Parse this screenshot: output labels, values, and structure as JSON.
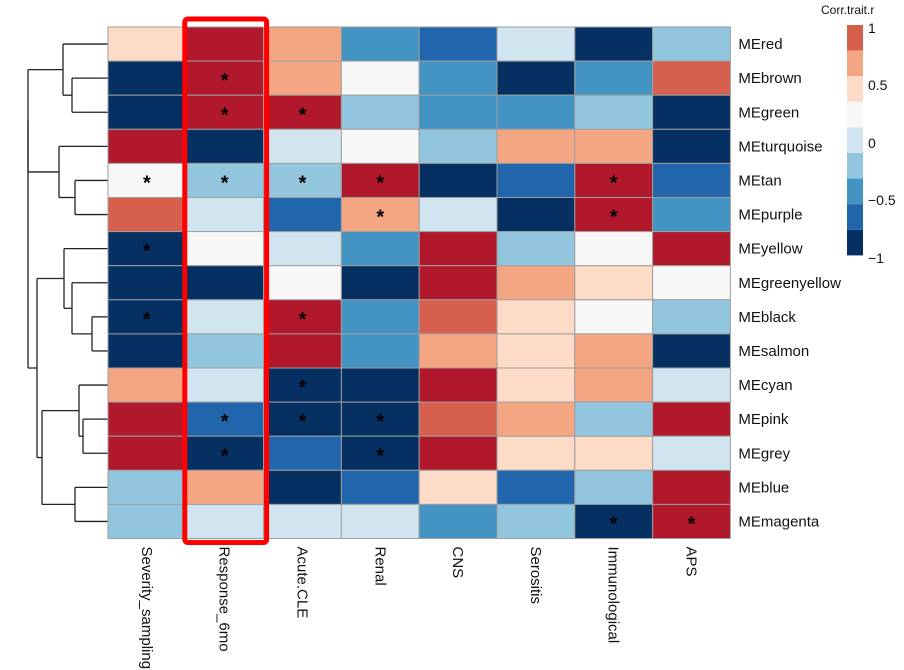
{
  "chart_data": {
    "type": "heatmap",
    "title": "",
    "xlabel": "",
    "ylabel": "",
    "columns": [
      "Severity_sampling",
      "Response_6mo",
      "Acute.CLE",
      "Renal",
      "CNS",
      "Serositis",
      "Immunological",
      "APS"
    ],
    "rows": [
      "MEred",
      "MEbrown",
      "MEgreen",
      "MEturquoise",
      "MEtan",
      "MEpurple",
      "MEyellow",
      "MEgreenyellow",
      "MEblack",
      "MEsalmon",
      "MEcyan",
      "MEpink",
      "MEgrey",
      "MEblue",
      "MEmagenta"
    ],
    "values": [
      [
        0.3,
        0.9,
        0.5,
        -0.5,
        -0.7,
        -0.1,
        -0.9,
        -0.3
      ],
      [
        -0.9,
        0.9,
        0.5,
        0.1,
        -0.5,
        -0.9,
        -0.5,
        0.7
      ],
      [
        -0.9,
        0.9,
        0.9,
        -0.3,
        -0.5,
        -0.5,
        -0.3,
        -0.9
      ],
      [
        0.9,
        -0.9,
        -0.1,
        0.1,
        -0.3,
        0.5,
        0.5,
        -0.9
      ],
      [
        0.1,
        -0.3,
        -0.3,
        0.9,
        -0.9,
        -0.7,
        0.9,
        -0.7
      ],
      [
        0.7,
        -0.1,
        -0.7,
        0.5,
        -0.1,
        -0.9,
        0.9,
        -0.5
      ],
      [
        -0.9,
        0.1,
        -0.1,
        -0.5,
        0.9,
        -0.3,
        0.1,
        0.9
      ],
      [
        -0.9,
        -0.9,
        0.1,
        -0.9,
        0.9,
        0.5,
        0.3,
        0.1
      ],
      [
        -0.9,
        -0.1,
        0.9,
        -0.5,
        0.7,
        0.3,
        0.1,
        -0.3
      ],
      [
        -0.9,
        -0.3,
        0.9,
        -0.5,
        0.5,
        0.3,
        0.5,
        -0.9
      ],
      [
        0.5,
        -0.1,
        -0.9,
        -0.9,
        0.9,
        0.3,
        0.5,
        -0.1
      ],
      [
        0.9,
        -0.7,
        -0.9,
        -0.9,
        0.7,
        0.5,
        -0.3,
        0.9
      ],
      [
        0.9,
        -0.9,
        -0.7,
        -0.9,
        0.9,
        0.3,
        0.3,
        -0.1
      ],
      [
        -0.3,
        0.5,
        -0.9,
        -0.7,
        0.3,
        -0.7,
        -0.3,
        0.9
      ],
      [
        -0.3,
        -0.1,
        -0.1,
        -0.1,
        -0.5,
        -0.3,
        -0.9,
        0.9
      ]
    ],
    "significant": [
      [
        false,
        false,
        false,
        false,
        false,
        false,
        false,
        false
      ],
      [
        false,
        true,
        false,
        false,
        false,
        false,
        false,
        false
      ],
      [
        false,
        true,
        true,
        false,
        false,
        false,
        false,
        false
      ],
      [
        false,
        false,
        false,
        false,
        false,
        false,
        false,
        false
      ],
      [
        true,
        true,
        true,
        true,
        false,
        false,
        true,
        false
      ],
      [
        false,
        false,
        false,
        true,
        false,
        false,
        true,
        false
      ],
      [
        true,
        false,
        false,
        false,
        false,
        false,
        false,
        false
      ],
      [
        false,
        false,
        false,
        false,
        false,
        false,
        false,
        false
      ],
      [
        true,
        false,
        true,
        false,
        false,
        false,
        false,
        false
      ],
      [
        false,
        false,
        false,
        false,
        false,
        false,
        false,
        false
      ],
      [
        false,
        false,
        true,
        false,
        false,
        false,
        false,
        false
      ],
      [
        false,
        true,
        true,
        true,
        false,
        false,
        false,
        false
      ],
      [
        false,
        true,
        false,
        true,
        false,
        false,
        false,
        false
      ],
      [
        false,
        false,
        false,
        false,
        false,
        false,
        false,
        false
      ],
      [
        false,
        false,
        false,
        false,
        false,
        false,
        true,
        true
      ]
    ],
    "significance_marker": "*",
    "highlighted_column": "Response_6mo",
    "highlight_color": "#ff0000",
    "color_scale": {
      "breaks": [
        -1,
        -0.8,
        -0.6,
        -0.4,
        -0.2,
        0,
        0.2,
        0.4,
        0.6,
        0.8,
        1
      ],
      "colors": [
        "#053061",
        "#2166ac",
        "#4393c3",
        "#92c5de",
        "#d1e5f0",
        "#f7f7f7",
        "#fddbc7",
        "#f4a582",
        "#d6604d",
        "#b2182b"
      ]
    },
    "legend": {
      "title": "Corr.trait.r",
      "position": "top-right",
      "ticks": [
        "1",
        "0.5",
        "0",
        "−0.5",
        "−1"
      ],
      "tick_values": [
        1,
        0.5,
        0,
        -0.5,
        -1
      ],
      "swatch_colors": [
        "#d6604d",
        "#f4a582",
        "#fddbc7",
        "#f7f7f7",
        "#d1e5f0",
        "#92c5de",
        "#4393c3",
        "#2166ac",
        "#053061"
      ]
    },
    "row_dendrogram": {
      "merges": [
        [
          "MEbrown",
          "MEgreen"
        ],
        [
          "MEred",
          "MEbrown+MEgreen"
        ],
        [
          "MEtan",
          "MEpurple"
        ],
        [
          "MEturquoise",
          "MEtan+MEpurple"
        ],
        [
          "MEblack",
          "MEsalmon"
        ],
        [
          "MEgreenyellow",
          "MEblack+MEsalmon"
        ],
        [
          "MEyellow",
          "MEgreenyellow+MEblack+MEsalmon"
        ],
        [
          "MEpink",
          "MEgrey"
        ],
        [
          "MEcyan",
          "MEpink+MEgrey"
        ],
        [
          "MEblue",
          "MEmagenta"
        ],
        [
          "cyan-group",
          "blue-group"
        ],
        [
          "yellow-group",
          "cyan-blue-group"
        ],
        [
          "red-group",
          "turquoise-group"
        ],
        [
          "top-group",
          "bottom-group"
        ]
      ]
    }
  }
}
